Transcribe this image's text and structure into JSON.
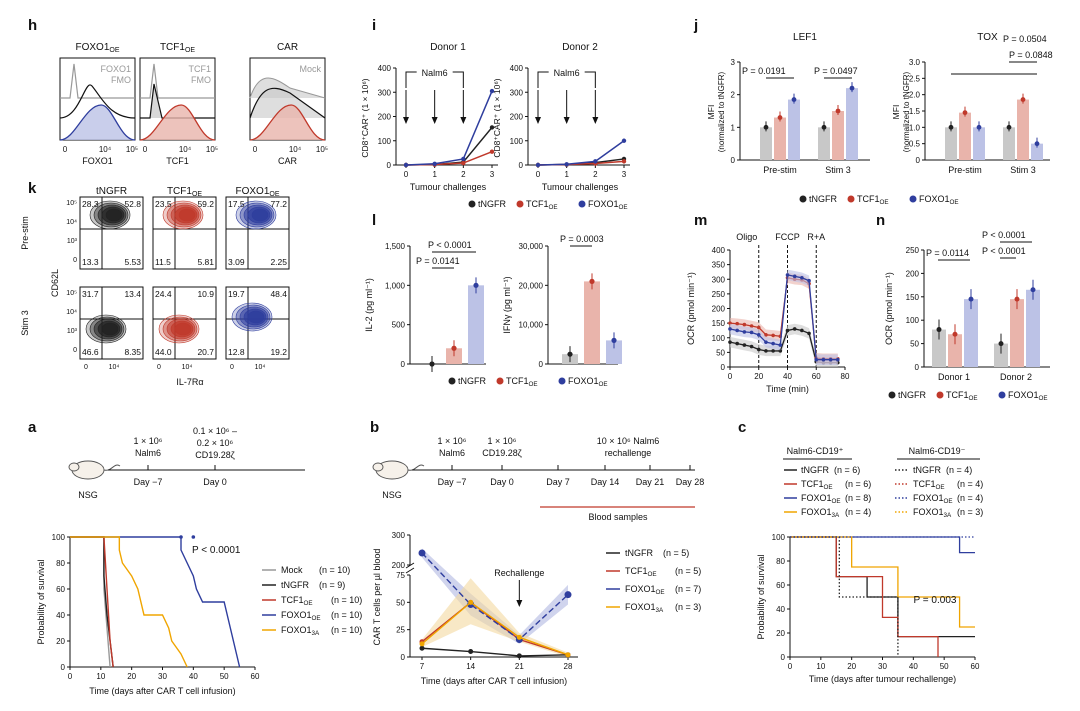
{
  "colors": {
    "black": "#222222",
    "red": "#c0392b",
    "blue": "#2f3e9e",
    "orange": "#f0a500",
    "grey": "#999999",
    "redFill": "#e9b4ab",
    "blueFill": "#bcc2e6",
    "greyFill": "#c8c8c8"
  },
  "chart_data": [
    {
      "id": "h",
      "type": "histogram",
      "panel_label": "h",
      "panels": [
        {
          "title": "FOXO1",
          "title_sub": "OE",
          "xlabel": "FOXO1",
          "control_label": "FOXO1\nFMO",
          "ticks": [
            "0",
            "10⁴",
            "10⁵"
          ]
        },
        {
          "title": "TCF1",
          "title_sub": "OE",
          "xlabel": "TCF1",
          "control_label": "TCF1\nFMO",
          "ticks": [
            "0",
            "10⁴",
            "10⁵"
          ]
        },
        {
          "title": "CAR",
          "title_sub": "",
          "xlabel": "CAR",
          "control_label": "Mock",
          "ticks": [
            "0",
            "10⁴",
            "10⁵"
          ]
        }
      ]
    },
    {
      "id": "i",
      "type": "line",
      "panel_label": "i",
      "ylabel": "CD8⁺CAR⁺ (1 × 10⁶)",
      "xlabel": "Tumour challenges",
      "ylim": [
        0,
        400
      ],
      "yticks": [
        0,
        100,
        200,
        300,
        400
      ],
      "x": [
        0,
        1,
        2,
        3
      ],
      "annotation": "Nalm6",
      "subplots": [
        {
          "title": "Donor 1",
          "series": [
            {
              "name": "tNGFR",
              "values": [
                0,
                2,
                12,
                155
              ]
            },
            {
              "name": "TCF1OE",
              "values": [
                0,
                2,
                8,
                55
              ]
            },
            {
              "name": "FOXO1OE",
              "values": [
                0,
                5,
                25,
                305
              ]
            }
          ]
        },
        {
          "title": "Donor 2",
          "series": [
            {
              "name": "tNGFR",
              "values": [
                0,
                2,
                10,
                25
              ]
            },
            {
              "name": "TCF1OE",
              "values": [
                0,
                2,
                6,
                15
              ]
            },
            {
              "name": "FOXO1OE",
              "values": [
                0,
                3,
                15,
                100
              ]
            }
          ]
        }
      ],
      "legend": [
        "tNGFR",
        "TCF1",
        "FOXO1"
      ]
    },
    {
      "id": "j",
      "type": "bar",
      "panel_label": "j",
      "ylabel": "MFI",
      "ylabel2": "(normalized to tNGFR)",
      "subplots": [
        {
          "title": "LEF1",
          "ylim": [
            0,
            3
          ],
          "yticks": [
            "0",
            "1",
            "2",
            "3"
          ],
          "categories": [
            "Pre-stim",
            "Stim 3"
          ],
          "series": [
            {
              "name": "tNGFR",
              "values": [
                1.0,
                1.0
              ]
            },
            {
              "name": "TCF1OE",
              "values": [
                1.3,
                1.5
              ]
            },
            {
              "name": "FOXO1OE",
              "values": [
                1.85,
                2.2
              ]
            }
          ],
          "pvalues": [
            "P = 0.0191",
            "P = 0.0497"
          ]
        },
        {
          "title": "TOX",
          "ylim": [
            0,
            3
          ],
          "yticks": [
            "0",
            "0.5",
            "1.0",
            "1.5",
            "2.0",
            "2.5",
            "3.0"
          ],
          "categories": [
            "Pre-stim",
            "Stim 3"
          ],
          "series": [
            {
              "name": "tNGFR",
              "values": [
                1.0,
                1.0
              ]
            },
            {
              "name": "TCF1OE",
              "values": [
                1.45,
                1.85
              ]
            },
            {
              "name": "FOXO1OE",
              "values": [
                1.0,
                0.5
              ]
            }
          ],
          "pvalues": [
            "P = 0.0504",
            "P = 0.0848"
          ]
        }
      ],
      "legend": [
        "tNGFR",
        "TCF1",
        "FOXO1"
      ]
    },
    {
      "id": "k",
      "type": "contour",
      "panel_label": "k",
      "ylabel": "CD62L",
      "xlabel": "IL-7Rα",
      "columns": [
        "tNGFR",
        "TCF1",
        "FOXO1"
      ],
      "column_subs": [
        "",
        "OE",
        "OE"
      ],
      "rows": [
        "Pre-stim",
        "Stim 3"
      ],
      "quadrants": [
        [
          [
            "28.3",
            "52.8",
            "13.3",
            "5.53"
          ],
          [
            "23.5",
            "59.2",
            "11.5",
            "5.81"
          ],
          [
            "17.5",
            "77.2",
            "3.09",
            "2.25"
          ]
        ],
        [
          [
            "31.7",
            "13.4",
            "46.6",
            "8.35"
          ],
          [
            "24.4",
            "10.9",
            "44.0",
            "20.7"
          ],
          [
            "19.7",
            "48.4",
            "12.8",
            "19.2"
          ]
        ]
      ],
      "yticks": [
        "10⁵",
        "10⁴",
        "10³",
        "0"
      ],
      "xticks": [
        "0",
        "10⁴"
      ]
    },
    {
      "id": "l",
      "type": "bar",
      "panel_label": "l",
      "subplots": [
        {
          "ylabel": "IL-2 (pg ml⁻¹)",
          "ylim": [
            0,
            1500
          ],
          "yticks": [
            "0",
            "500",
            "1,000",
            "1,500"
          ],
          "categories": [
            "tNGFR",
            "TCF1OE",
            "FOXO1OE"
          ],
          "values": [
            0,
            200,
            1000
          ],
          "pvalues": [
            "P < 0.0001",
            "P = 0.0141"
          ]
        },
        {
          "ylabel": "IFNγ (pg ml⁻¹)",
          "ylim": [
            0,
            30000
          ],
          "yticks": [
            "0",
            "10,000",
            "20,000",
            "30,000"
          ],
          "categories": [
            "tNGFR",
            "TCF1OE",
            "FOXO1OE"
          ],
          "values": [
            2500,
            21000,
            6000
          ],
          "pvalues": [
            "P = 0.0003"
          ]
        }
      ],
      "legend": [
        "tNGFR",
        "TCF1",
        "FOXO1"
      ]
    },
    {
      "id": "m",
      "type": "line",
      "panel_label": "m",
      "ylabel": "OCR (pmol min⁻¹)",
      "xlabel": "Time (min)",
      "xlim": [
        0,
        80
      ],
      "xticks": [
        0,
        20,
        40,
        60,
        80
      ],
      "ylim": [
        0,
        400
      ],
      "yticks": [
        0,
        50,
        100,
        150,
        200,
        250,
        300,
        350,
        400
      ],
      "markers": [
        "Oligo",
        "FCCP",
        "R+A"
      ],
      "marker_x": [
        20,
        40,
        60
      ],
      "x": [
        0,
        5,
        10,
        15,
        20,
        25,
        30,
        35,
        40,
        45,
        50,
        55,
        60,
        65,
        70,
        75
      ],
      "series": [
        {
          "name": "tNGFR",
          "values": [
            85,
            80,
            75,
            70,
            60,
            55,
            55,
            55,
            125,
            130,
            125,
            115,
            18,
            15,
            15,
            15
          ]
        },
        {
          "name": "TCF1OE",
          "values": [
            150,
            148,
            145,
            140,
            135,
            110,
            108,
            105,
            305,
            300,
            298,
            285,
            30,
            28,
            28,
            28
          ]
        },
        {
          "name": "FOXO1OE",
          "values": [
            130,
            125,
            120,
            118,
            110,
            85,
            80,
            75,
            315,
            310,
            305,
            295,
            25,
            25,
            25,
            25
          ]
        }
      ]
    },
    {
      "id": "n",
      "type": "bar",
      "panel_label": "n",
      "ylabel": "OCR (pmol min⁻¹)",
      "ylim": [
        0,
        250
      ],
      "yticks": [
        "0",
        "50",
        "100",
        "150",
        "200",
        "250"
      ],
      "categories": [
        "Donor 1",
        "Donor 2"
      ],
      "series": [
        {
          "name": "tNGFR",
          "values": [
            80,
            50
          ]
        },
        {
          "name": "TCF1OE",
          "values": [
            70,
            145
          ]
        },
        {
          "name": "FOXO1OE",
          "values": [
            145,
            165
          ]
        }
      ],
      "pvalues": [
        "P = 0.0114",
        "P < 0.0001",
        "P < 0.0001"
      ],
      "legend": [
        "tNGFR",
        "TCF1",
        "FOXO1"
      ]
    },
    {
      "id": "a",
      "type": "line",
      "panel_label": "a",
      "timeline": {
        "cells1": "1 × 10⁶",
        "cells1b": "Nalm6",
        "cells2": "0.1 × 10⁶ –",
        "cells2b": "0.2 × 10⁶",
        "cells2c": "CD19.28ζ",
        "mouse": "NSG",
        "day1": "Day −7",
        "day2": "Day 0"
      },
      "ylabel": "Probability of survival",
      "xlabel": "Time (days after CAR T cell infusion)",
      "xlim": [
        0,
        60
      ],
      "xticks": [
        0,
        10,
        20,
        30,
        40,
        50,
        60
      ],
      "ylim": [
        0,
        100
      ],
      "yticks": [
        0,
        20,
        40,
        60,
        80,
        100
      ],
      "pvalue": "P < 0.0001",
      "series": [
        {
          "name": "Mock",
          "n": "(n = 10)",
          "steps": [
            [
              0,
              100
            ],
            [
              11,
              100
            ],
            [
              11,
              60
            ],
            [
              12,
              30
            ],
            [
              13,
              0
            ]
          ]
        },
        {
          "name": "tNGFR",
          "n": "(n = 9)",
          "steps": [
            [
              0,
              100
            ],
            [
              11,
              100
            ],
            [
              11,
              70
            ],
            [
              12,
              40
            ],
            [
              13,
              20
            ],
            [
              14,
              0
            ]
          ]
        },
        {
          "name": "TCF1",
          "sub": "OE",
          "n": "(n = 10)",
          "steps": [
            [
              0,
              100
            ],
            [
              11,
              100
            ],
            [
              12,
              60
            ],
            [
              13,
              20
            ],
            [
              14,
              0
            ]
          ]
        },
        {
          "name": "FOXO1",
          "sub": "OE",
          "n": "(n = 10)",
          "steps": [
            [
              0,
              100
            ],
            [
              36,
              100
            ],
            [
              36,
              90
            ],
            [
              38,
              80
            ],
            [
              40,
              70
            ],
            [
              41,
              60
            ],
            [
              43,
              50
            ],
            [
              50,
              50
            ],
            [
              52,
              30
            ],
            [
              54,
              10
            ],
            [
              55,
              0
            ]
          ]
        },
        {
          "name": "FOXO1",
          "sub": "3A",
          "n": "(n = 10)",
          "steps": [
            [
              0,
              100
            ],
            [
              16,
              100
            ],
            [
              16,
              90
            ],
            [
              17,
              80
            ],
            [
              20,
              70
            ],
            [
              22,
              60
            ],
            [
              24,
              40
            ],
            [
              30,
              40
            ],
            [
              32,
              30
            ],
            [
              33,
              20
            ],
            [
              36,
              10
            ],
            [
              38,
              0
            ]
          ]
        }
      ]
    },
    {
      "id": "b",
      "type": "line",
      "panel_label": "b",
      "timeline": {
        "c1": "1 × 10⁶",
        "c1b": "Nalm6",
        "c2": "1 × 10⁶",
        "c2b": "CD19.28ζ",
        "c3": "10 × 10⁶ Nalm6",
        "c3b": "rechallenge",
        "mouse": "NSG",
        "days": [
          "Day −7",
          "Day 0",
          "Day 7",
          "Day 14",
          "Day 21",
          "Day 28"
        ],
        "blood": "Blood samples"
      },
      "ylabel": "CAR T cells per µl blood",
      "xlabel": "Time (days after CAR T cell infusion)",
      "x": [
        7,
        14,
        21,
        28
      ],
      "yticks_top": [
        "200",
        "300"
      ],
      "yticks_bottom": [
        "0",
        "25",
        "50",
        "75"
      ],
      "annotation": "Rechallenge",
      "series": [
        {
          "name": "tNGFR",
          "n": "(n = 5)",
          "values": [
            8,
            5,
            1,
            2
          ]
        },
        {
          "name": "TCF1",
          "sub": "OE",
          "n": "(n = 5)",
          "values": [
            14,
            50,
            16,
            2
          ]
        },
        {
          "name": "FOXO1",
          "sub": "OE",
          "n": "(n = 7)",
          "values": [
            240,
            48,
            16,
            57
          ]
        },
        {
          "name": "FOXO1",
          "sub": "3A",
          "n": "(n = 3)",
          "values": [
            12,
            50,
            18,
            2
          ]
        }
      ]
    },
    {
      "id": "c",
      "type": "line",
      "panel_label": "c",
      "group1": "Nalm6-CD19⁺",
      "group2": "Nalm6-CD19⁻",
      "ylabel": "Probability of survival",
      "xlabel": "Time (days after tumour rechallenge)",
      "xlim": [
        0,
        60
      ],
      "xticks": [
        0,
        10,
        20,
        30,
        40,
        50,
        60
      ],
      "ylim": [
        0,
        100
      ],
      "yticks": [
        0,
        20,
        40,
        60,
        80,
        100
      ],
      "pvalue": "P = 0.003",
      "legend1": [
        {
          "name": "tNGFR",
          "sub": "",
          "n": "(n = 6)"
        },
        {
          "name": "TCF1",
          "sub": "OE",
          "n": "(n = 6)"
        },
        {
          "name": "FOXO1",
          "sub": "OE",
          "n": "(n = 8)"
        },
        {
          "name": "FOXO1",
          "sub": "3A",
          "n": "(n = 4)"
        }
      ],
      "legend2": [
        {
          "name": "tNGFR",
          "sub": "",
          "n": "(n = 4)"
        },
        {
          "name": "TCF1",
          "sub": "OE",
          "n": "(n = 4)"
        },
        {
          "name": "FOXO1",
          "sub": "OE",
          "n": "(n = 4)"
        },
        {
          "name": "FOXO1",
          "sub": "3A",
          "n": "(n = 3)"
        }
      ],
      "series": [
        {
          "name": "tNGFR",
          "steps": [
            [
              0,
              100
            ],
            [
              15,
              100
            ],
            [
              15,
              67
            ],
            [
              25,
              67
            ],
            [
              25,
              50
            ],
            [
              35,
              50
            ],
            [
              35,
              17
            ],
            [
              60,
              17
            ]
          ]
        },
        {
          "name": "TCF1OE",
          "steps": [
            [
              0,
              100
            ],
            [
              15,
              100
            ],
            [
              15,
              67
            ],
            [
              30,
              67
            ],
            [
              30,
              33
            ],
            [
              35,
              33
            ],
            [
              35,
              17
            ],
            [
              48,
              17
            ],
            [
              48,
              0
            ]
          ]
        },
        {
          "name": "FOXO1OE",
          "steps": [
            [
              0,
              100
            ],
            [
              55,
              100
            ],
            [
              55,
              87
            ],
            [
              60,
              87
            ]
          ]
        },
        {
          "name": "FOXO13A",
          "steps": [
            [
              0,
              100
            ],
            [
              20,
              100
            ],
            [
              20,
              75
            ],
            [
              35,
              75
            ],
            [
              35,
              50
            ],
            [
              55,
              50
            ],
            [
              55,
              25
            ],
            [
              60,
              25
            ]
          ]
        },
        {
          "name": "tNGFR-neg",
          "steps": [
            [
              0,
              100
            ],
            [
              16,
              100
            ],
            [
              16,
              50
            ],
            [
              35,
              50
            ],
            [
              35,
              0
            ]
          ]
        },
        {
          "name": "FOXO1OE-neg",
          "steps": [
            [
              0,
              100
            ],
            [
              60,
              100
            ]
          ]
        }
      ]
    }
  ]
}
